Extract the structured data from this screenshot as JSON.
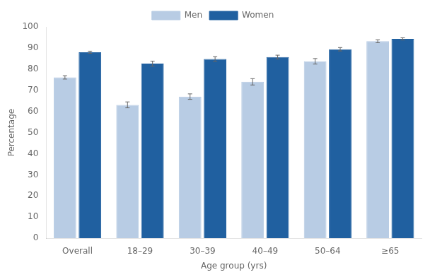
{
  "chart_data": {
    "type": "bar",
    "xlabel": "Age group (yrs)",
    "ylabel": "Percentage",
    "categories": [
      "Overall",
      "18–29",
      "30–39",
      "40–49",
      "50–64",
      "≥65"
    ],
    "series": [
      {
        "name": "Men",
        "color": "#b8cce4",
        "values": [
          76.1,
          63.1,
          67.0,
          74.0,
          83.7,
          93.2
        ],
        "errors": [
          0.8,
          1.4,
          1.3,
          1.5,
          1.3,
          0.7
        ]
      },
      {
        "name": "Women",
        "color": "#2060a0",
        "values": [
          88.0,
          82.6,
          84.8,
          85.7,
          89.4,
          94.3
        ],
        "errors": [
          0.5,
          1.2,
          1.1,
          0.9,
          0.8,
          0.5
        ]
      }
    ],
    "ylim": [
      0,
      100
    ],
    "yticks": [
      0,
      10,
      20,
      30,
      40,
      50,
      60,
      70,
      80,
      90,
      100
    ],
    "grid": false,
    "legend": "top"
  }
}
